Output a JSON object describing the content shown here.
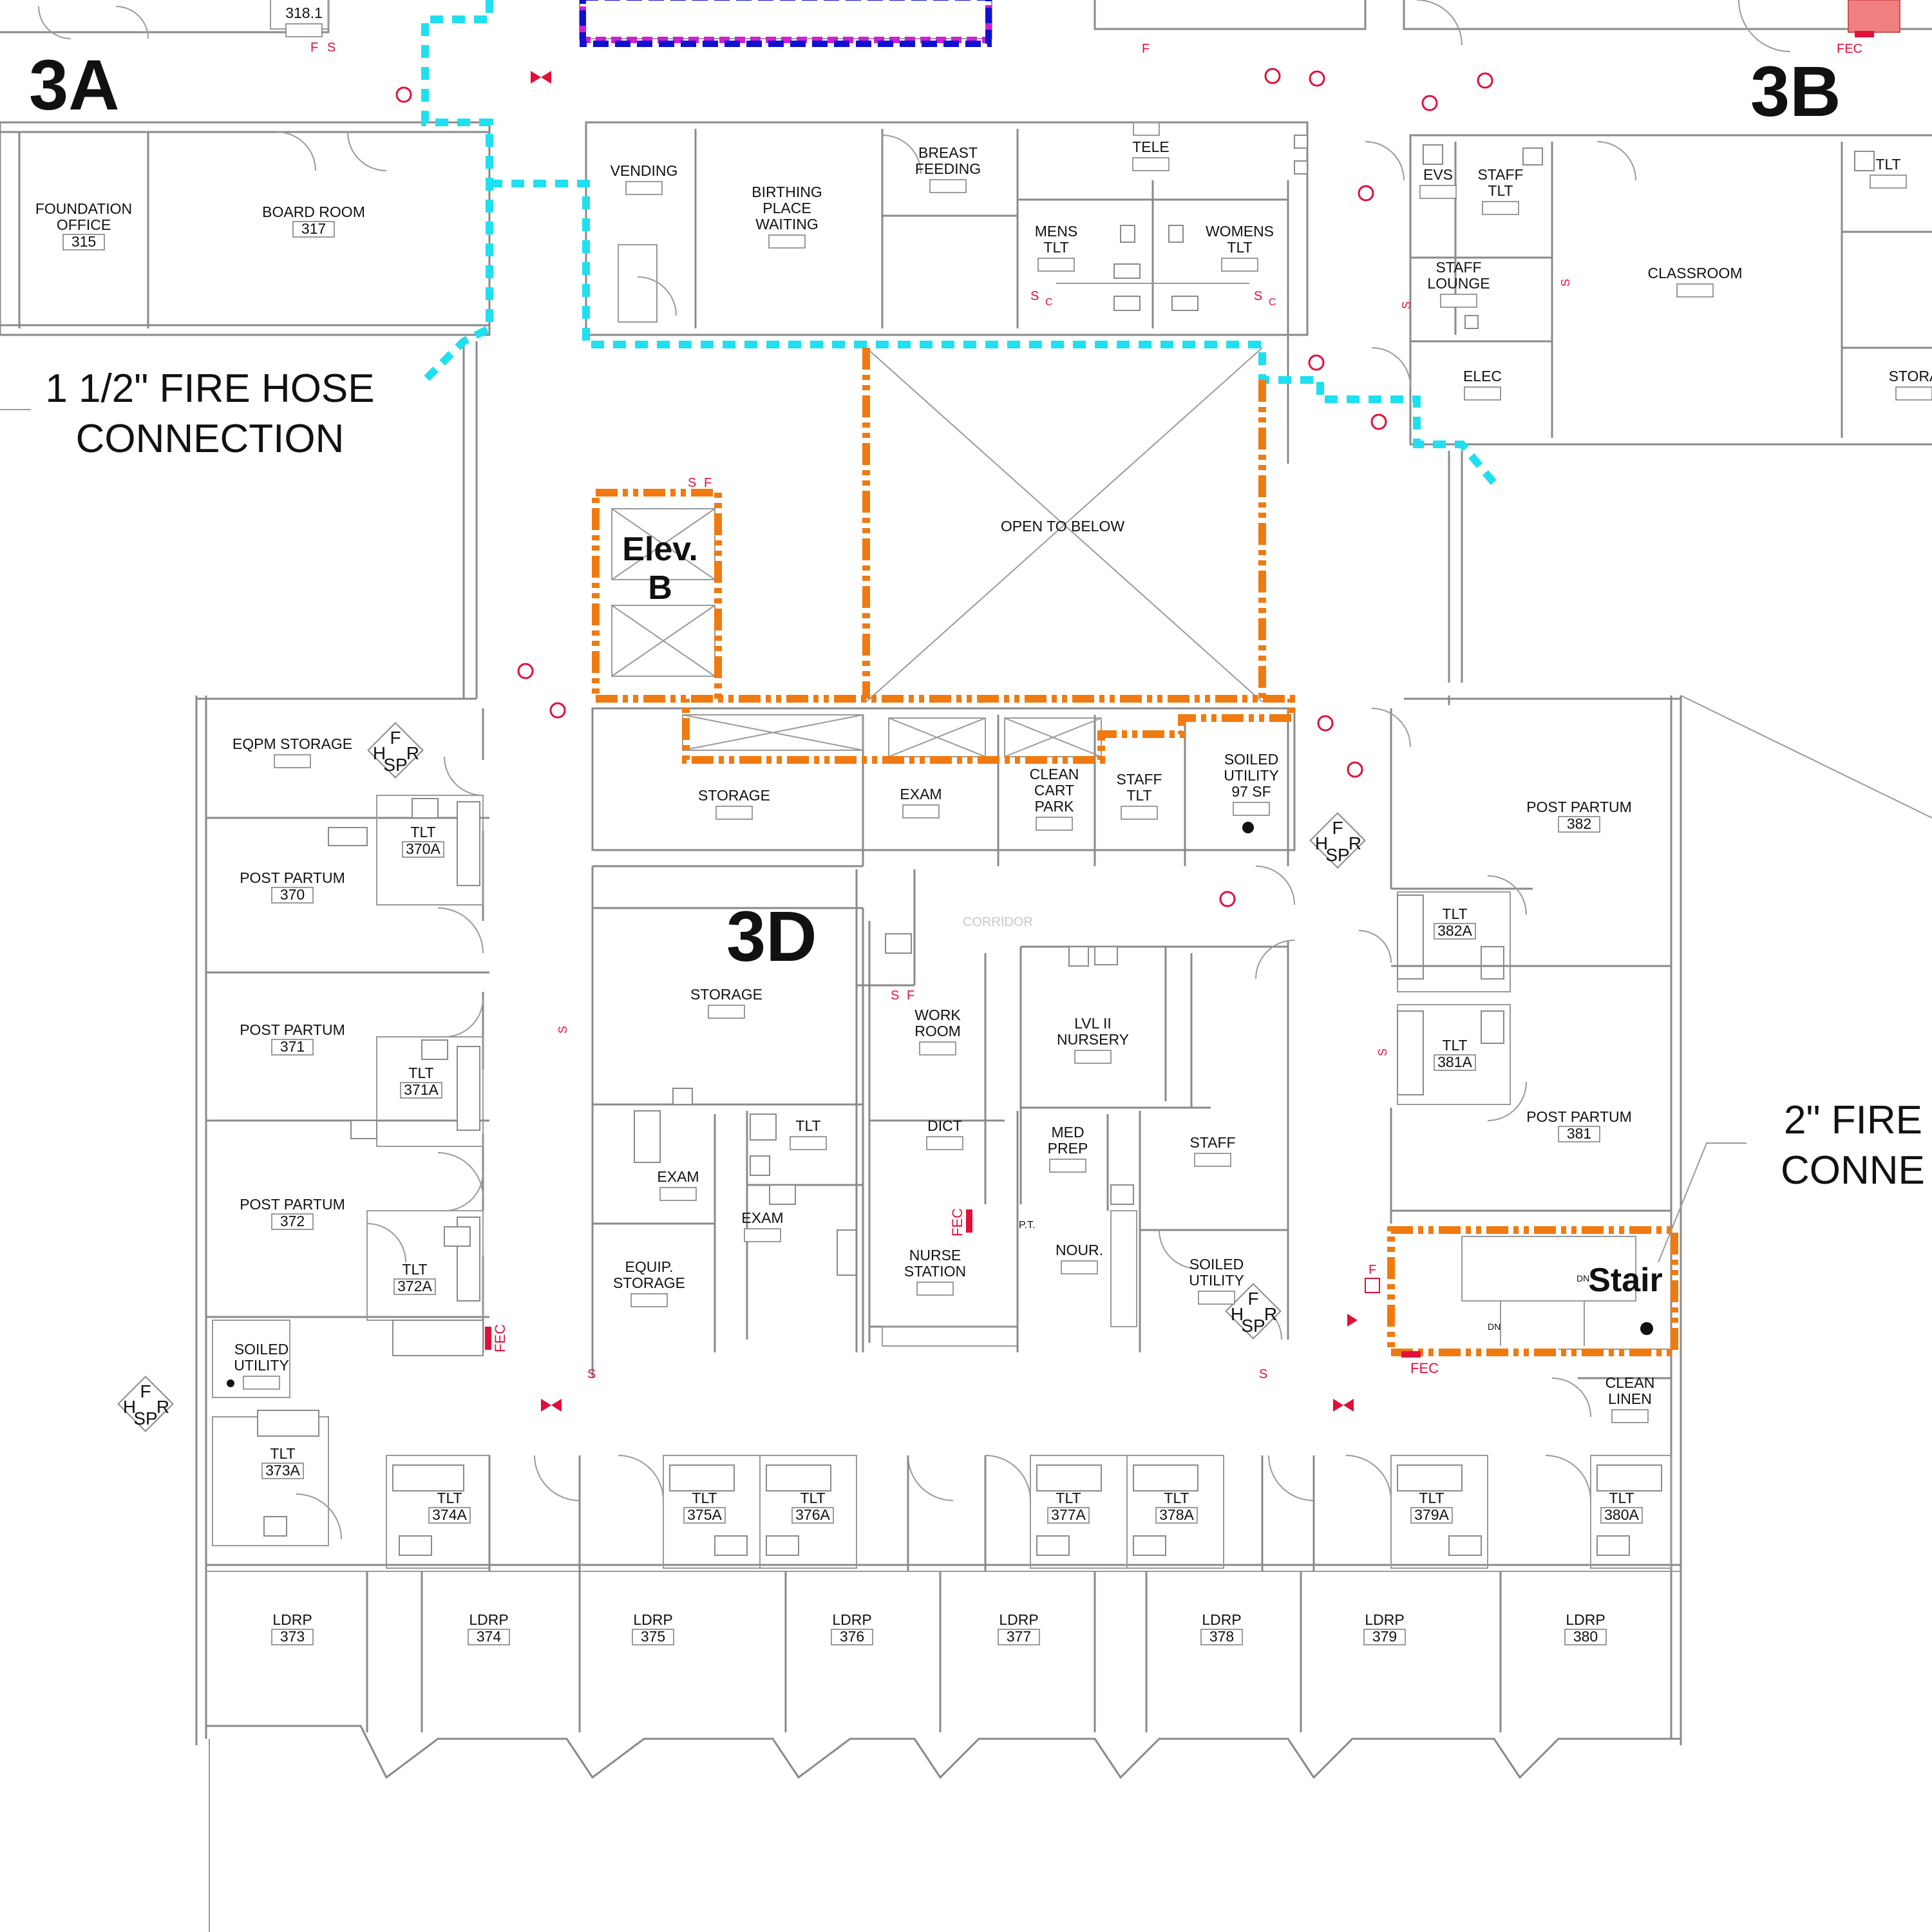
{
  "zones": [
    "3A",
    "3B",
    "3D"
  ],
  "callouts": {
    "hose_small": [
      "1 1/2\" FIRE HOSE",
      "CONNECTION"
    ],
    "hose_large": [
      "2\" FIRE",
      "CONNE"
    ]
  },
  "shafts": {
    "elevator": [
      "Elev.",
      "B"
    ],
    "stair": "Stair",
    "open_to_below": "OPEN TO BELOW",
    "corridor": "CORRIDOR"
  },
  "rooms": [
    {
      "name": [
        "318.1"
      ]
    },
    {
      "name": [
        "FOUNDATION",
        "OFFICE"
      ],
      "number": "315"
    },
    {
      "name": [
        "BOARD ROOM"
      ],
      "number": "317"
    },
    {
      "name": [
        "VENDING"
      ]
    },
    {
      "name": [
        "BIRTHING",
        "PLACE",
        "WAITING"
      ]
    },
    {
      "name": [
        "BREAST",
        "FEEDING"
      ]
    },
    {
      "name": [
        "TELE"
      ]
    },
    {
      "name": [
        "MENS",
        "TLT"
      ]
    },
    {
      "name": [
        "WOMENS",
        "TLT"
      ]
    },
    {
      "name": [
        "EVS"
      ]
    },
    {
      "name": [
        "STAFF",
        "TLT"
      ]
    },
    {
      "name": [
        "STAFF",
        "LOUNGE"
      ]
    },
    {
      "name": [
        "ELEC"
      ]
    },
    {
      "name": [
        "CLASSROOM"
      ]
    },
    {
      "name": [
        "TLT"
      ]
    },
    {
      "name": [
        "STORA"
      ]
    },
    {
      "name": [
        "EQPM STORAGE"
      ]
    },
    {
      "name": [
        "STORAGE"
      ]
    },
    {
      "name": [
        "EXAM"
      ]
    },
    {
      "name": [
        "CLEAN",
        "CART",
        "PARK"
      ]
    },
    {
      "name": [
        "STAFF",
        "TLT"
      ]
    },
    {
      "name": [
        "SOILED",
        "UTILITY",
        "97 SF"
      ]
    },
    {
      "name": [
        "POST PARTUM"
      ],
      "number": "382"
    },
    {
      "name": [
        "TLT"
      ],
      "number": "370A"
    },
    {
      "name": [
        "POST PARTUM"
      ],
      "number": "370"
    },
    {
      "name": [
        "TLT"
      ],
      "number": "382A"
    },
    {
      "name": [
        "STORAGE"
      ]
    },
    {
      "name": [
        "WORK",
        "ROOM"
      ]
    },
    {
      "name": [
        "LVL II",
        "NURSERY"
      ]
    },
    {
      "name": [
        "POST PARTUM"
      ],
      "number": "371"
    },
    {
      "name": [
        "TLT"
      ],
      "number": "371A"
    },
    {
      "name": [
        "TLT"
      ],
      "number": "381A"
    },
    {
      "name": [
        "POST PARTUM"
      ],
      "number": "381"
    },
    {
      "name": [
        "TLT"
      ]
    },
    {
      "name": [
        "DICT"
      ]
    },
    {
      "name": [
        "MED",
        "PREP"
      ]
    },
    {
      "name": [
        "STAFF"
      ]
    },
    {
      "name": [
        "EXAM"
      ]
    },
    {
      "name": [
        "EXAM"
      ]
    },
    {
      "name": [
        "POST PARTUM"
      ],
      "number": "372"
    },
    {
      "name": [
        "TLT"
      ],
      "number": "372A"
    },
    {
      "name": [
        "NURSE",
        "STATION"
      ]
    },
    {
      "name": [
        "NOUR."
      ]
    },
    {
      "name": [
        "SOILED",
        "UTILITY"
      ]
    },
    {
      "name": [
        "EQUIP.",
        "STORAGE"
      ]
    },
    {
      "name": [
        "SOILED",
        "UTILITY"
      ]
    },
    {
      "name": [
        "CLEAN",
        "LINEN"
      ]
    },
    {
      "name": [
        "TLT"
      ],
      "number": "373A"
    },
    {
      "name": [
        "TLT"
      ],
      "number": "374A"
    },
    {
      "name": [
        "TLT"
      ],
      "number": "375A"
    },
    {
      "name": [
        "TLT"
      ],
      "number": "376A"
    },
    {
      "name": [
        "TLT"
      ],
      "number": "377A"
    },
    {
      "name": [
        "TLT"
      ],
      "number": "378A"
    },
    {
      "name": [
        "TLT"
      ],
      "number": "379A"
    },
    {
      "name": [
        "TLT"
      ],
      "number": "380A"
    },
    {
      "name": [
        "LDRP"
      ],
      "number": "373"
    },
    {
      "name": [
        "LDRP"
      ],
      "number": "374"
    },
    {
      "name": [
        "LDRP"
      ],
      "number": "375"
    },
    {
      "name": [
        "LDRP"
      ],
      "number": "376"
    },
    {
      "name": [
        "LDRP"
      ],
      "number": "377"
    },
    {
      "name": [
        "LDRP"
      ],
      "number": "378"
    },
    {
      "name": [
        "LDRP"
      ],
      "number": "379"
    },
    {
      "name": [
        "LDRP"
      ],
      "number": "380"
    }
  ],
  "symbols": {
    "fec": "FEC",
    "fire": "F",
    "hose": "H",
    "riser": "R",
    "sprinkler": "SP",
    "strobe": "S",
    "camera": "C",
    "pt": "P.T.",
    "dn": "DN"
  },
  "colors": {
    "hose_line": "#1fe0f0",
    "rated_wall": "#f07a10",
    "fire_symbol": "#e0103a",
    "wall": "#8a8a8a"
  }
}
